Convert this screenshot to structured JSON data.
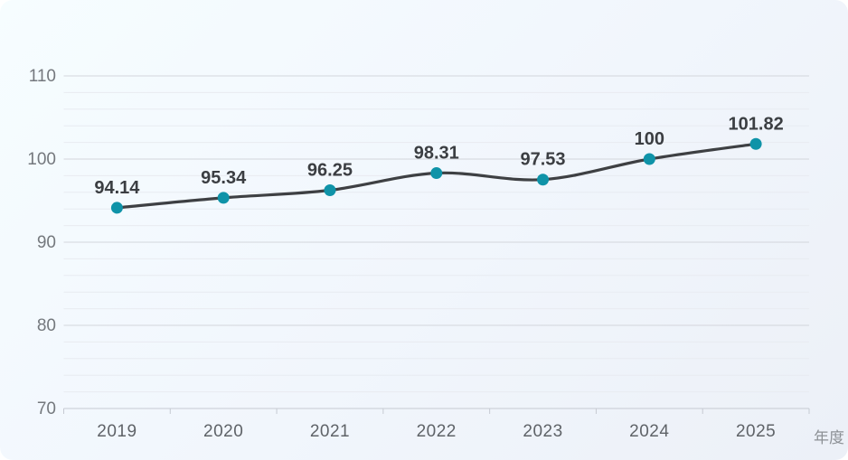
{
  "chart_data": {
    "type": "line",
    "title": "",
    "categories": [
      "2019",
      "2020",
      "2021",
      "2022",
      "2023",
      "2024",
      "2025"
    ],
    "values": [
      94.14,
      95.34,
      96.25,
      98.31,
      97.53,
      100,
      101.82
    ],
    "data_labels": [
      "94.14",
      "95.34",
      "96.25",
      "98.31",
      "97.53",
      "100",
      "101.82"
    ],
    "xlabel": "年度",
    "ylabel": "",
    "ylim": [
      70,
      110
    ],
    "y_major_step": 10,
    "y_minor_step": 2,
    "y_tick_labels": [
      "70",
      "80",
      "90",
      "100",
      "110"
    ],
    "grid": "on",
    "legend": "none",
    "smooth": true,
    "marker": "circle"
  },
  "colors": {
    "line": "#3e4043",
    "marker": "#0f93a8",
    "data_label": "#3b3e42",
    "y_axis_label": "#74787d",
    "x_axis_label": "#5f6368",
    "grid_major": "#d3d6dc",
    "grid_minor": "#e8ebf1",
    "axis_line": "#c6cad2",
    "xlabel_text": "#8c9095",
    "bg_start": "#f6fdff",
    "bg_mid": "#f2f7fd",
    "bg_end": "#ecf0f7"
  }
}
